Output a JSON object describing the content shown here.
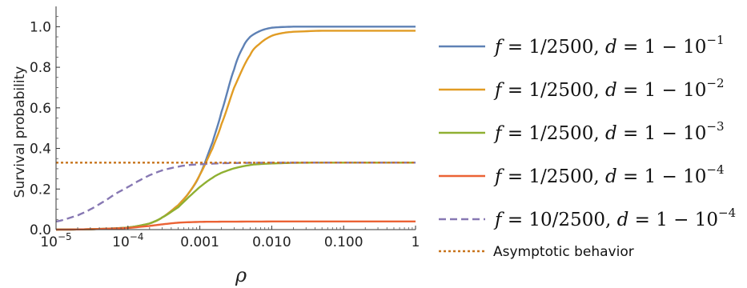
{
  "chart_data": {
    "type": "line",
    "xscale": "log",
    "xlim": [
      1e-05,
      1
    ],
    "ylim": [
      0,
      1.1
    ],
    "xlabel": "ρ",
    "ylabel": "Survival probability",
    "x_ticks": [
      {
        "value": 1e-05,
        "base": "10",
        "exp": "−5"
      },
      {
        "value": 0.0001,
        "base": "10",
        "exp": "−4"
      },
      {
        "value": 0.001,
        "label": "0.001"
      },
      {
        "value": 0.01,
        "label": "0.010"
      },
      {
        "value": 0.1,
        "label": "0.100"
      },
      {
        "value": 1,
        "label": "1"
      }
    ],
    "y_ticks": [
      {
        "value": 0.0,
        "label": "0.0"
      },
      {
        "value": 0.2,
        "label": "0.2"
      },
      {
        "value": 0.4,
        "label": "0.4"
      },
      {
        "value": 0.6,
        "label": "0.6"
      },
      {
        "value": 0.8,
        "label": "0.8"
      },
      {
        "value": 1.0,
        "label": "1.0"
      }
    ],
    "grid": false,
    "legend_position": "right",
    "series": [
      {
        "name": "f = 1/2500, d = 1 − 10^−1",
        "legend": {
          "f": "1/2500",
          "d_exp": "−1"
        },
        "color": "#5e81b5",
        "dash": "solid",
        "x": [
          1e-05,
          3e-05,
          0.0001,
          0.0002,
          0.0003,
          0.0005,
          0.0007,
          0.001,
          0.0015,
          0.002,
          0.003,
          0.004,
          0.005,
          0.007,
          0.01,
          0.02,
          0.05,
          0.1,
          1
        ],
        "y": [
          0.0,
          0.002,
          0.01,
          0.03,
          0.06,
          0.12,
          0.18,
          0.27,
          0.43,
          0.58,
          0.79,
          0.9,
          0.95,
          0.98,
          0.995,
          1.0,
          1.0,
          1.0,
          1.0
        ]
      },
      {
        "name": "f = 1/2500, d = 1 − 10^−2",
        "legend": {
          "f": "1/2500",
          "d_exp": "−2"
        },
        "color": "#e19c24",
        "dash": "solid",
        "x": [
          1e-05,
          3e-05,
          0.0001,
          0.0002,
          0.0003,
          0.0005,
          0.0007,
          0.001,
          0.0015,
          0.002,
          0.003,
          0.005,
          0.007,
          0.01,
          0.015,
          0.02,
          0.05,
          0.1,
          1
        ],
        "y": [
          0.0,
          0.002,
          0.01,
          0.03,
          0.06,
          0.12,
          0.18,
          0.27,
          0.4,
          0.52,
          0.7,
          0.86,
          0.92,
          0.955,
          0.97,
          0.975,
          0.98,
          0.98,
          0.98
        ]
      },
      {
        "name": "f = 1/2500, d = 1 − 10^−3",
        "legend": {
          "f": "1/2500",
          "d_exp": "−3"
        },
        "color": "#8fb032",
        "dash": "solid",
        "x": [
          1e-05,
          3e-05,
          0.0001,
          0.0002,
          0.0003,
          0.0005,
          0.0007,
          0.001,
          0.0015,
          0.002,
          0.003,
          0.005,
          0.007,
          0.01,
          0.02,
          0.05,
          0.1,
          1
        ],
        "y": [
          0.0,
          0.002,
          0.01,
          0.03,
          0.06,
          0.11,
          0.16,
          0.21,
          0.255,
          0.28,
          0.302,
          0.318,
          0.323,
          0.326,
          0.329,
          0.33,
          0.33,
          0.33
        ]
      },
      {
        "name": "f = 1/2500, d = 1 − 10^−4",
        "legend": {
          "f": "1/2500",
          "d_exp": "−4"
        },
        "color": "#eb6235",
        "dash": "solid",
        "x": [
          1e-05,
          3e-05,
          0.0001,
          0.0002,
          0.0003,
          0.0005,
          0.001,
          0.002,
          0.01,
          1
        ],
        "y": [
          0.0,
          0.002,
          0.008,
          0.018,
          0.026,
          0.034,
          0.038,
          0.039,
          0.04,
          0.04
        ]
      },
      {
        "name": "f = 10/2500, d = 1 − 10^−4",
        "legend": {
          "f": "10/2500",
          "d_exp": "−4"
        },
        "color": "#8778b3",
        "dash": "dashed",
        "x": [
          1e-05,
          2e-05,
          3e-05,
          5e-05,
          7e-05,
          0.0001,
          0.00015,
          0.0002,
          0.0003,
          0.0005,
          0.0007,
          0.001,
          0.002,
          0.005,
          0.01,
          1
        ],
        "y": [
          0.04,
          0.07,
          0.1,
          0.145,
          0.18,
          0.21,
          0.245,
          0.268,
          0.292,
          0.31,
          0.318,
          0.322,
          0.327,
          0.329,
          0.33,
          0.33
        ]
      },
      {
        "name": "Asymptotic behavior",
        "color": "#c8741c",
        "dash": "dotted",
        "x": [
          1e-05,
          1
        ],
        "y": [
          0.33,
          0.33
        ]
      }
    ]
  }
}
